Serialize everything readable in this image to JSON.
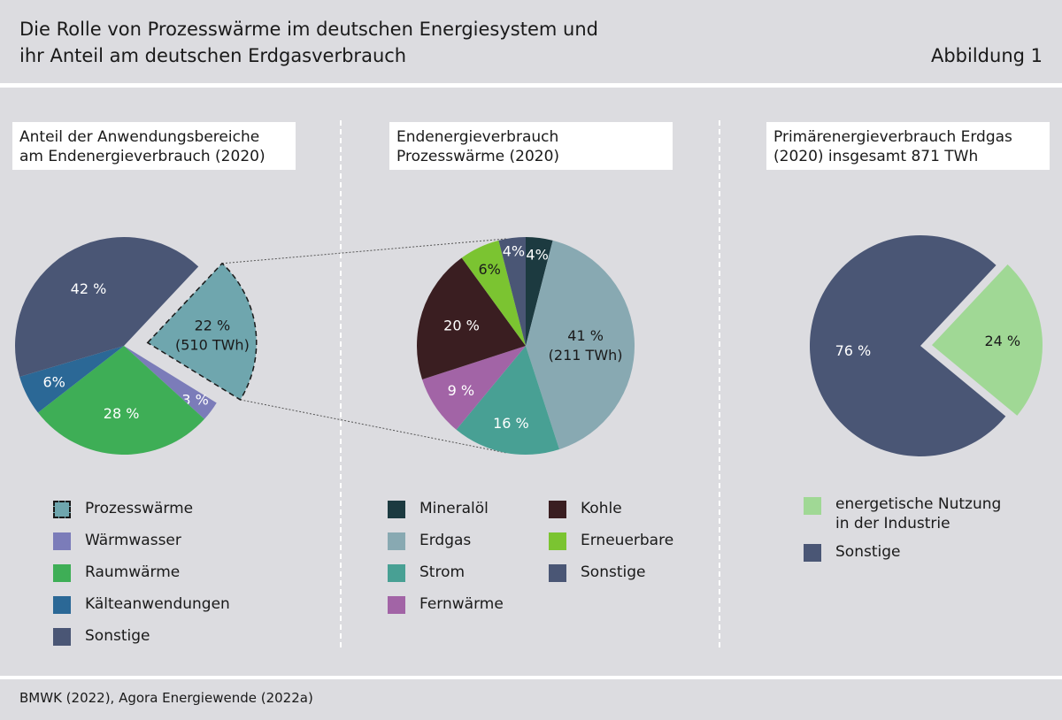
{
  "header": {
    "title_line1": "Die Rolle von Prozesswärme im deutschen Energiesystem und",
    "title_line2": "ihr Anteil am deutschen Erdgasverbrauch",
    "figure_label": "Abbildung 1"
  },
  "source": "BMWK (2022), Agora Energiewende (2022a)",
  "chart_data": [
    {
      "type": "pie",
      "title_line1": "Anteil der Anwendungsbereiche",
      "title_line2": "am Endenergieverbrauch (2020)",
      "slices": [
        {
          "name": "Prozesswärme",
          "value": 22,
          "label": "22 %",
          "sublabel": "(510 TWh)",
          "color": "#6fa6ae",
          "exploded": true
        },
        {
          "name": "Wärmwasser",
          "value": 3,
          "label": "3 %",
          "color": "#7b7cb9"
        },
        {
          "name": "Raumwärme",
          "value": 28,
          "label": "28 %",
          "color": "#3eae56"
        },
        {
          "name": "Kälteanwendungen",
          "value": 6,
          "label": "6%",
          "color": "#2b6896"
        },
        {
          "name": "Sonstige",
          "value": 42,
          "label": "42 %",
          "color": "#4a5675"
        }
      ],
      "legend": [
        "Prozesswärme",
        "Wärmwasser",
        "Raumwärme",
        "Kälteanwendungen",
        "Sonstige"
      ]
    },
    {
      "type": "pie",
      "title_line1": "Endenergieverbrauch",
      "title_line2": "Prozesswärme (2020)",
      "slices": [
        {
          "name": "Mineralöl",
          "value": 4,
          "label": "4%",
          "color": "#1c3a40"
        },
        {
          "name": "Erdgas",
          "value": 41,
          "label": "41 %",
          "sublabel": "(211 TWh)",
          "color": "#88a9b2"
        },
        {
          "name": "Strom",
          "value": 16,
          "label": "16 %",
          "color": "#48a094"
        },
        {
          "name": "Fernwärme",
          "value": 9,
          "label": "9 %",
          "color": "#a264a6"
        },
        {
          "name": "Kohle",
          "value": 20,
          "label": "20 %",
          "color": "#3a1e21"
        },
        {
          "name": "Erneuerbare",
          "value": 6,
          "label": "6%",
          "color": "#7bc431"
        },
        {
          "name": "Sonstige",
          "value": 4,
          "label": "4%",
          "color": "#4a5675"
        }
      ],
      "legend_col1": [
        "Mineralöl",
        "Erdgas",
        "Strom",
        "Fernwärme"
      ],
      "legend_col2": [
        "Kohle",
        "Erneuerbare",
        "Sonstige"
      ]
    },
    {
      "type": "pie",
      "title_line1": "Primärenergieverbrauch Erdgas",
      "title_line2": "(2020) insgesamt 871 TWh",
      "slices": [
        {
          "name": "energetische Nutzung in der Industrie",
          "value": 24,
          "label": "24 %",
          "color": "#a0d895",
          "exploded": true
        },
        {
          "name": "Sonstige",
          "value": 76,
          "label": "76 %",
          "color": "#4a5675"
        }
      ],
      "legend": [
        "energetische Nutzung in der Industrie",
        "Sonstige"
      ],
      "legend_display": [
        {
          "line1": "energetische Nutzung",
          "line2": "in der Industrie"
        },
        {
          "line1": "Sonstige"
        }
      ]
    }
  ]
}
